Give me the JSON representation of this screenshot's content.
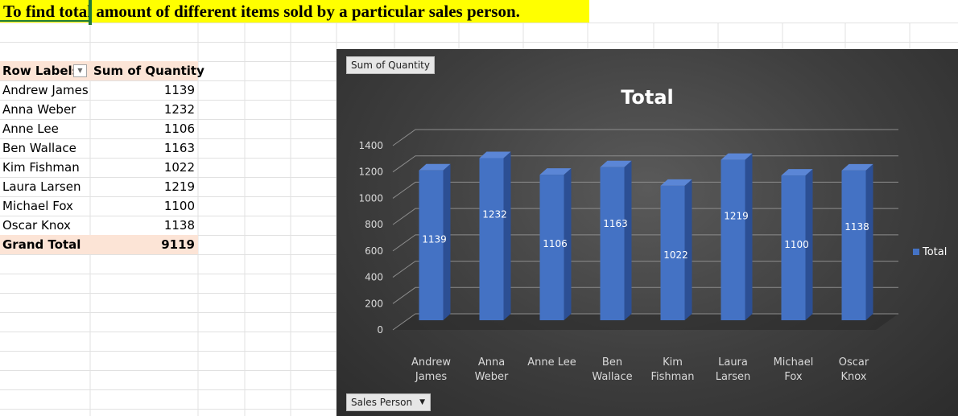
{
  "banner": {
    "text": "To find total amount of different items sold by a particular sales person."
  },
  "pivot": {
    "header": {
      "row_labels": "Row Labels",
      "sum_label": "Sum of Quantity"
    },
    "rows": [
      {
        "name": "Andrew James",
        "value": "1139"
      },
      {
        "name": "Anna Weber",
        "value": "1232"
      },
      {
        "name": "Anne Lee",
        "value": "1106"
      },
      {
        "name": "Ben Wallace",
        "value": "1163"
      },
      {
        "name": "Kim Fishman",
        "value": "1022"
      },
      {
        "name": "Laura Larsen",
        "value": "1219"
      },
      {
        "name": "Michael Fox",
        "value": "1100"
      },
      {
        "name": "Oscar Knox",
        "value": "1138"
      }
    ],
    "total": {
      "label": "Grand Total",
      "value": "9119"
    }
  },
  "chart_buttons": {
    "value_field": "Sum of Quantity",
    "axis_field": "Sales Person"
  },
  "colors": {
    "bar": "#4472c4",
    "banner": "#ffff00",
    "pivot_header": "#fce4d6",
    "chart_bg": "#404040"
  },
  "chart_data": {
    "type": "bar",
    "title": "Total",
    "categories": [
      [
        "Andrew",
        "James"
      ],
      [
        "Anna",
        "Weber"
      ],
      [
        "Anne Lee"
      ],
      [
        "Ben",
        "Wallace"
      ],
      [
        "Kim",
        "Fishman"
      ],
      [
        "Laura",
        "Larsen"
      ],
      [
        "Michael",
        "Fox"
      ],
      [
        "Oscar",
        "Knox"
      ]
    ],
    "series": [
      {
        "name": "Total",
        "values": [
          1139,
          1232,
          1106,
          1163,
          1022,
          1219,
          1100,
          1138
        ]
      }
    ],
    "ylim": [
      0,
      1400
    ],
    "yticks": [
      0,
      200,
      400,
      600,
      800,
      1000,
      1200,
      1400
    ],
    "grid": true,
    "legend": "right",
    "data_labels": true
  }
}
